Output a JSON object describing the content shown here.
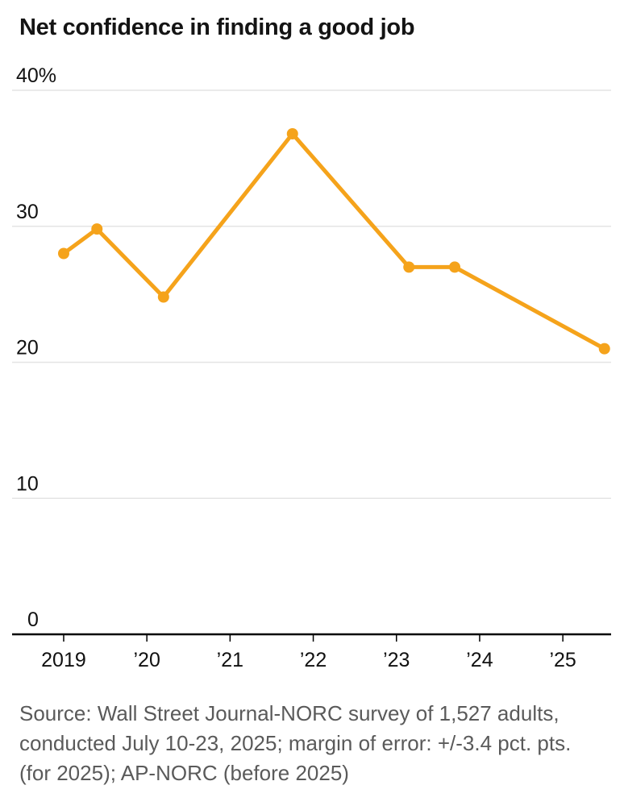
{
  "header": {
    "title": "Net confidence in finding a good job"
  },
  "chart_data": {
    "type": "line",
    "title": "Net confidence in finding a good job",
    "unit": "%",
    "series_name": "Net confidence",
    "x": [
      2019.0,
      2019.4,
      2020.2,
      2021.75,
      2023.15,
      2023.7,
      2025.5
    ],
    "values": [
      28,
      29.8,
      24.8,
      36.8,
      27,
      27,
      21
    ],
    "xlim": [
      2018.38,
      2025.58
    ],
    "ylim": [
      0,
      40
    ],
    "x_ticks": [
      {
        "value": 2019,
        "label": "2019"
      },
      {
        "value": 2020,
        "label": "’20"
      },
      {
        "value": 2021,
        "label": "’21"
      },
      {
        "value": 2022,
        "label": "’22"
      },
      {
        "value": 2023,
        "label": "’23"
      },
      {
        "value": 2024,
        "label": "’24"
      },
      {
        "value": 2025,
        "label": "’25"
      }
    ],
    "y_ticks": [
      {
        "value": 0,
        "label": "0"
      },
      {
        "value": 10,
        "label": "10"
      },
      {
        "value": 20,
        "label": "20"
      },
      {
        "value": 30,
        "label": "30"
      },
      {
        "value": 40,
        "label": "40%"
      }
    ],
    "grid": true,
    "legend": "none",
    "line_color": "#F5A31B",
    "gridline_color": "#E4E4E4",
    "axis_color": "#000000",
    "tick_label_color": "#111111"
  },
  "footer": {
    "source": "Source: Wall Street Journal-NORC survey of 1,527 adults, conducted July 10-23, 2025; margin of error: +/-3.4 pct. pts. (for 2025); AP-NORC (before 2025)"
  }
}
